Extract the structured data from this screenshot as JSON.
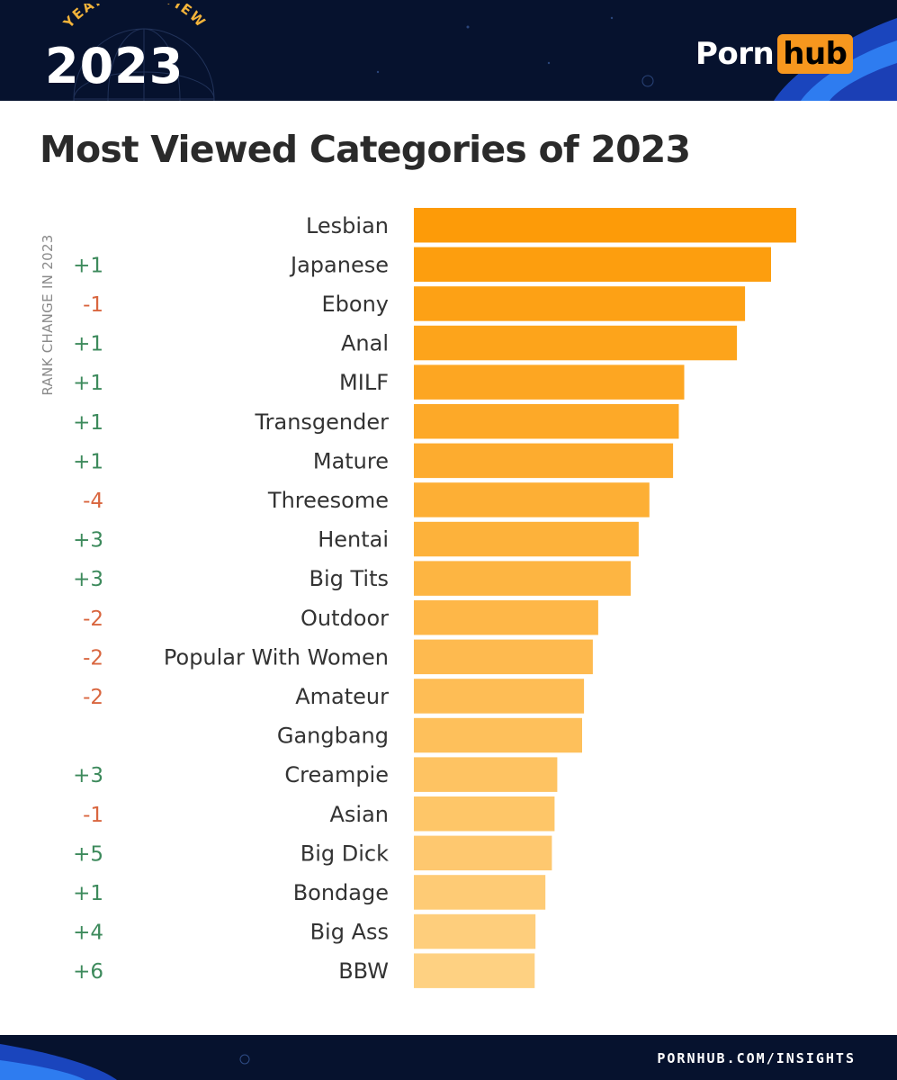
{
  "header": {
    "badge_top": "YEAR IN REVIEW",
    "badge_year": "2023",
    "logo_left": "Porn",
    "logo_right": "hub"
  },
  "footer": {
    "url": "PORNHUB.COM/INSIGHTS"
  },
  "colors": {
    "banner": "#06122e",
    "bar_top": "#fd9b08",
    "bar_bottom": "#fed182",
    "positive_change": "#3d8a5c",
    "negative_change": "#d9663f",
    "badge_gold": "#f2b33a",
    "logo_orange": "#f7971e"
  },
  "chart_data": {
    "type": "bar",
    "orientation": "horizontal",
    "title": "Most Viewed Categories of 2023",
    "rank_change_label": "RANK CHANGE IN 2023",
    "categories": [
      "Lesbian",
      "Japanese",
      "Ebony",
      "Anal",
      "MILF",
      "Transgender",
      "Mature",
      "Threesome",
      "Hentai",
      "Big Tits",
      "Outdoor",
      "Popular With Women",
      "Amateur",
      "Gangbang",
      "Creampie",
      "Asian",
      "Big Dick",
      "Bondage",
      "Big Ass",
      "BBW"
    ],
    "values": [
      100,
      93.4,
      86.6,
      84.5,
      70.7,
      69.3,
      67.8,
      61.6,
      58.8,
      56.7,
      48.2,
      46.8,
      44.5,
      44.0,
      37.5,
      36.8,
      36.1,
      34.4,
      31.8,
      31.6
    ],
    "rank_changes": [
      "",
      "+1",
      "-1",
      "+1",
      "+1",
      "+1",
      "+1",
      "-4",
      "+3",
      "+3",
      "-2",
      "-2",
      "-2",
      "",
      "+3",
      "-1",
      "+5",
      "+1",
      "+4",
      "+6"
    ],
    "xlim": [
      0,
      100
    ],
    "grid": false,
    "legend": "none"
  }
}
